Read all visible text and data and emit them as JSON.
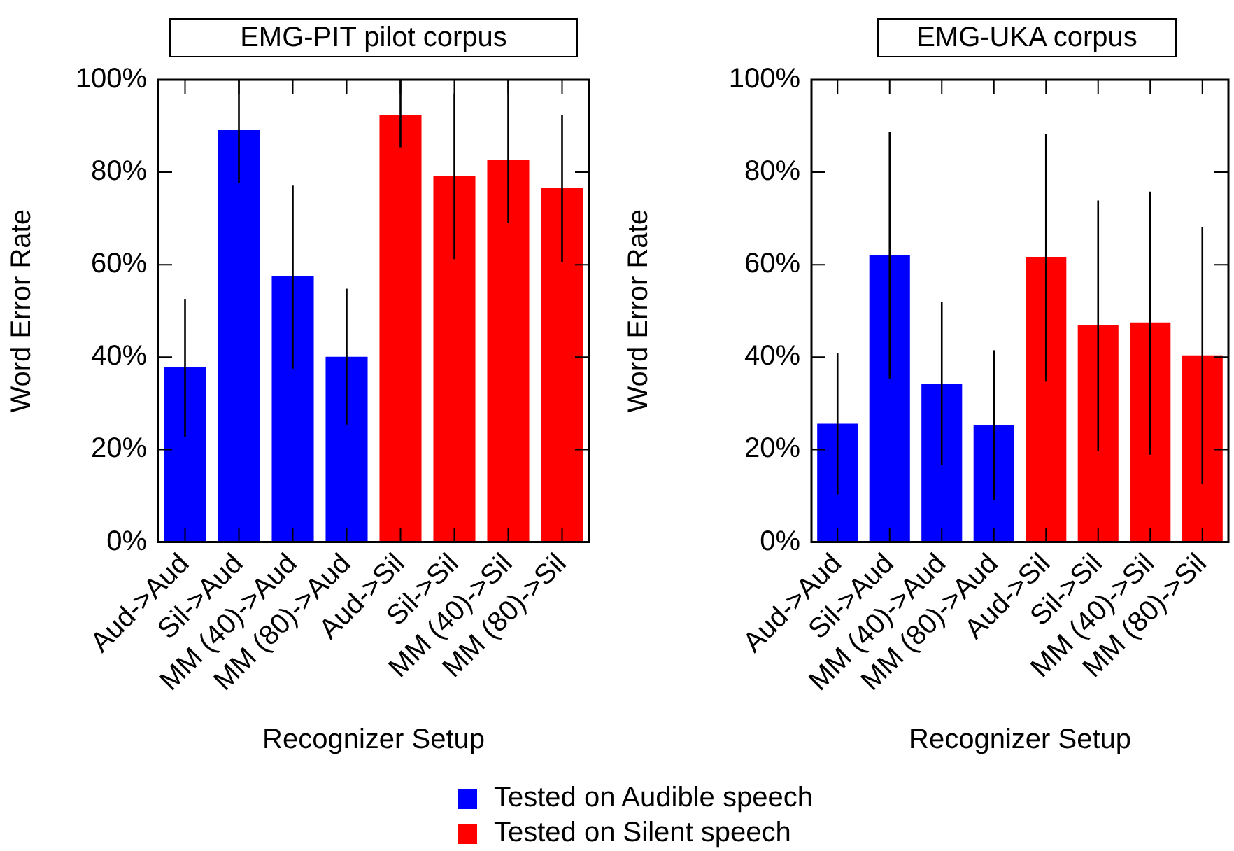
{
  "chart_data": [
    {
      "type": "bar",
      "title": "EMG-PIT pilot corpus",
      "xlabel": "Recognizer Setup",
      "ylabel": "Word Error Rate",
      "categories": [
        "Aud->Aud",
        "Sil->Aud",
        "MM (40)->Aud",
        "MM (80)->Aud",
        "Aud->Sil",
        "Sil->Sil",
        "MM (40)->Sil",
        "MM (80)->Sil"
      ],
      "stacked": true,
      "legend": "bottom",
      "grid": false,
      "series": [
        {
          "name": "Tested on Audible speech",
          "color": "#0000ff",
          "values": [
            37.8,
            89.1,
            57.5,
            40.1,
            null,
            null,
            null,
            null
          ],
          "errors": [
            [
              22.8,
              52.6
            ],
            [
              77.6,
              100
            ],
            [
              37.5,
              77.1
            ],
            [
              25.4,
              54.8
            ],
            null,
            null,
            null,
            null
          ]
        },
        {
          "name": "Tested on Silent speech",
          "color": "#ff0000",
          "values": [
            null,
            null,
            null,
            null,
            92.4,
            79.1,
            82.7,
            76.6
          ],
          "errors": [
            null,
            null,
            null,
            null,
            [
              85.4,
              100
            ],
            [
              61.2,
              97
            ],
            [
              69,
              100
            ],
            [
              60.6,
              92.4
            ]
          ]
        }
      ],
      "ylim": [
        0,
        100
      ],
      "yticks": [
        {
          "value": 0,
          "label": "0%"
        },
        {
          "value": 20,
          "label": "20%"
        },
        {
          "value": 40,
          "label": "40%"
        },
        {
          "value": 60,
          "label": "60%"
        },
        {
          "value": 80,
          "label": "80%"
        },
        {
          "value": 100,
          "label": "100%"
        }
      ]
    },
    {
      "type": "bar",
      "title": "EMG-UKA corpus",
      "xlabel": "Recognizer Setup",
      "ylabel": "Word Error Rate",
      "categories": [
        "Aud->Aud",
        "Sil->Aud",
        "MM (40)->Aud",
        "MM (80)->Aud",
        "Aud->Sil",
        "Sil->Sil",
        "MM (40)->Sil",
        "MM (80)->Sil"
      ],
      "stacked": true,
      "grid": false,
      "series": [
        {
          "color": "#0000ff",
          "values": [
            25.6,
            62.0,
            34.3,
            25.3,
            null,
            null,
            null,
            null
          ],
          "errors": [
            [
              10.3,
              40.8
            ],
            [
              35.4,
              88.7
            ],
            [
              16.7,
              52.0
            ],
            [
              9.0,
              41.5
            ],
            null,
            null,
            null,
            null
          ]
        },
        {
          "color": "#ff0000",
          "values": [
            null,
            null,
            null,
            null,
            61.7,
            46.9,
            47.5,
            40.4
          ],
          "errors": [
            null,
            null,
            null,
            null,
            [
              34.7,
              88.2
            ],
            [
              19.6,
              73.9
            ],
            [
              18.9,
              75.8
            ],
            [
              12.6,
              68.1
            ]
          ]
        }
      ],
      "ylim": [
        0,
        100
      ],
      "yticks": [
        {
          "value": 0,
          "label": "0%"
        },
        {
          "value": 20,
          "label": "20%"
        },
        {
          "value": 40,
          "label": "40%"
        },
        {
          "value": 60,
          "label": "60%"
        },
        {
          "value": 80,
          "label": "80%"
        },
        {
          "value": 100,
          "label": "100%"
        }
      ]
    }
  ]
}
